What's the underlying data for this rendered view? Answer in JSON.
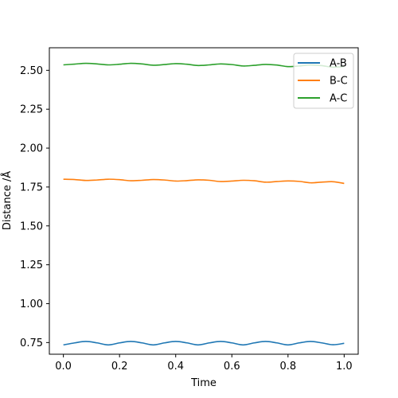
{
  "chart_data": {
    "type": "line",
    "title": "",
    "xlabel": "Time",
    "ylabel": "Distance /Å",
    "xlim": [
      -0.05,
      1.05
    ],
    "ylim": [
      0.675,
      2.645
    ],
    "xticks": [
      0.0,
      0.2,
      0.4,
      0.6,
      0.8,
      1.0
    ],
    "xtick_labels": [
      "0.0",
      "0.2",
      "0.4",
      "0.6",
      "0.8",
      "1.0"
    ],
    "yticks": [
      0.75,
      1.0,
      1.25,
      1.5,
      1.75,
      2.0,
      2.25,
      2.5
    ],
    "ytick_labels": [
      "0.75",
      "1.00",
      "1.25",
      "1.50",
      "1.75",
      "2.00",
      "2.25",
      "2.50"
    ],
    "grid": false,
    "legend_position": "top-right",
    "series": [
      {
        "name": "A-B",
        "color": "#1f77b4",
        "x": [
          0.0,
          0.04,
          0.08,
          0.12,
          0.16,
          0.2,
          0.24,
          0.28,
          0.32,
          0.36,
          0.4,
          0.44,
          0.48,
          0.52,
          0.56,
          0.6,
          0.64,
          0.68,
          0.72,
          0.76,
          0.8,
          0.84,
          0.88,
          0.92,
          0.96,
          1.0
        ],
        "y": [
          0.735,
          0.748,
          0.757,
          0.748,
          0.735,
          0.748,
          0.757,
          0.748,
          0.735,
          0.748,
          0.757,
          0.748,
          0.735,
          0.748,
          0.757,
          0.748,
          0.735,
          0.748,
          0.757,
          0.748,
          0.735,
          0.748,
          0.757,
          0.748,
          0.736,
          0.745
        ]
      },
      {
        "name": "B-C",
        "color": "#ff7f0e",
        "x": [
          0.0,
          0.04,
          0.08,
          0.12,
          0.16,
          0.2,
          0.24,
          0.28,
          0.32,
          0.36,
          0.4,
          0.44,
          0.48,
          0.52,
          0.56,
          0.6,
          0.64,
          0.68,
          0.72,
          0.76,
          0.8,
          0.84,
          0.88,
          0.92,
          0.96,
          1.0
        ],
        "y": [
          1.8,
          1.798,
          1.792,
          1.795,
          1.8,
          1.797,
          1.79,
          1.793,
          1.798,
          1.795,
          1.788,
          1.791,
          1.796,
          1.793,
          1.785,
          1.788,
          1.793,
          1.79,
          1.781,
          1.785,
          1.789,
          1.786,
          1.777,
          1.781,
          1.784,
          1.773
        ]
      },
      {
        "name": "A-C",
        "color": "#2ca02c",
        "x": [
          0.0,
          0.04,
          0.08,
          0.12,
          0.16,
          0.2,
          0.24,
          0.28,
          0.32,
          0.36,
          0.4,
          0.44,
          0.48,
          0.52,
          0.56,
          0.6,
          0.64,
          0.68,
          0.72,
          0.76,
          0.8,
          0.84,
          0.88,
          0.92,
          0.96,
          1.0
        ],
        "y": [
          2.535,
          2.54,
          2.545,
          2.541,
          2.535,
          2.539,
          2.545,
          2.541,
          2.533,
          2.537,
          2.543,
          2.539,
          2.531,
          2.535,
          2.541,
          2.537,
          2.528,
          2.532,
          2.538,
          2.534,
          2.524,
          2.528,
          2.534,
          2.53,
          2.52,
          2.525
        ]
      }
    ]
  }
}
